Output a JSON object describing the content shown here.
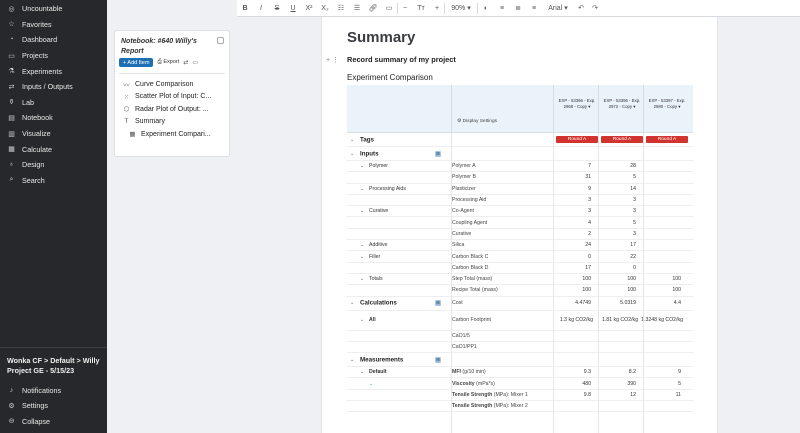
{
  "sidebar": {
    "items": [
      {
        "label": "Uncountable",
        "icon": "brand-icon"
      },
      {
        "label": "Favorites",
        "icon": "star-icon"
      },
      {
        "label": "Dashboard",
        "icon": "dashboard-icon"
      },
      {
        "label": "Projects",
        "icon": "folder-icon"
      },
      {
        "label": "Experiments",
        "icon": "experiments-icon"
      },
      {
        "label": "Inputs / Outputs",
        "icon": "inputs-outputs-icon"
      },
      {
        "label": "Lab",
        "icon": "flask-icon"
      },
      {
        "label": "Notebook",
        "icon": "notebook-icon"
      },
      {
        "label": "Visualize",
        "icon": "chart-icon"
      },
      {
        "label": "Calculate",
        "icon": "calculator-icon"
      },
      {
        "label": "Design",
        "icon": "bulb-icon"
      },
      {
        "label": "Search",
        "icon": "search-icon"
      }
    ],
    "breadcrumb": "Wonka CF > Default > Willy Project GE - 5/15/23",
    "footer": [
      {
        "label": "Notifications",
        "icon": "bell-icon"
      },
      {
        "label": "Settings",
        "icon": "gear-icon"
      },
      {
        "label": "Collapse",
        "icon": "collapse-icon"
      }
    ]
  },
  "notebook": {
    "title": "Notebook: #640 Willy's Report",
    "add_label": "+ Add Item",
    "export_label": "Export",
    "items": [
      {
        "label": "Curve Comparison",
        "icon": "curve-icon"
      },
      {
        "label": "Scatter Plot of Input: C...",
        "icon": "scatter-icon"
      },
      {
        "label": "Radar Plot of Output: ...",
        "icon": "radar-icon"
      },
      {
        "label": "Summary",
        "icon": "text-icon"
      },
      {
        "label": "Experiment Compari...",
        "icon": "table-icon"
      }
    ]
  },
  "toolbar": {
    "bold": "B",
    "italic": "I",
    "strike": "S",
    "underline": "U",
    "superscript": "X²",
    "subscript": "X₂",
    "font_size_label": "Tт",
    "zoom": "90%",
    "font": "Arial"
  },
  "doc": {
    "heading": "Summary",
    "record_summary": "Record summary of my project",
    "table_title": "Experiment Comparison",
    "display_settings": "Display Settings",
    "columns": [
      {
        "line1": "EXP - 53396 - Exp.",
        "line2": "2968 - Copy"
      },
      {
        "line1": "EXP - 53396 - Exp.",
        "line2": "2972 - Copy"
      },
      {
        "line1": "EXP - 53397 - Exp.",
        "line2": "2980 - Copy"
      }
    ],
    "tags_label": "Tags",
    "tag_value": "Round A",
    "rows": [
      {
        "kind": "sec",
        "label": "Inputs",
        "add": true
      },
      {
        "kind": "grp",
        "label": "Polymer",
        "sub": "Polymer A",
        "vals": [
          "7",
          "28",
          ""
        ]
      },
      {
        "kind": "sub",
        "sub": "Polymer B",
        "vals": [
          "31",
          "5",
          ""
        ]
      },
      {
        "kind": "grp",
        "label": "Processing Aids",
        "sub": "Plasticizer",
        "vals": [
          "9",
          "14",
          ""
        ]
      },
      {
        "kind": "sub",
        "sub": "Processing Aid",
        "vals": [
          "3",
          "3",
          ""
        ]
      },
      {
        "kind": "grp",
        "label": "Curative",
        "sub": "Co-Agent",
        "vals": [
          "3",
          "3",
          ""
        ]
      },
      {
        "kind": "sub",
        "sub": "Coupling Agent",
        "vals": [
          "4",
          "5",
          ""
        ]
      },
      {
        "kind": "sub",
        "sub": "Curative",
        "vals": [
          "2",
          "3",
          ""
        ]
      },
      {
        "kind": "grp",
        "label": "Additive",
        "sub": "Silica",
        "vals": [
          "24",
          "17",
          ""
        ]
      },
      {
        "kind": "grp",
        "label": "Filler",
        "sub": "Carbon Black C",
        "vals": [
          "0",
          "22",
          ""
        ]
      },
      {
        "kind": "sub",
        "sub": "Carbon Black D",
        "vals": [
          "17",
          "0",
          ""
        ]
      },
      {
        "kind": "grp",
        "label": "Totals",
        "sub": "Step Total (mass)",
        "vals": [
          "100",
          "100",
          "100"
        ]
      },
      {
        "kind": "sub",
        "sub": "Recipe Total (mass)",
        "vals": [
          "100",
          "100",
          "100"
        ]
      },
      {
        "kind": "sec",
        "label": "Calculations",
        "add": true,
        "sub": "Cost",
        "vals": [
          "4.4749",
          "5.0319",
          "4.4"
        ]
      },
      {
        "kind": "grp2",
        "label": "All",
        "sub": "Carbon Footprint",
        "vals": [
          "1.3 kg CO2/kg",
          "1.81 kg CO2/kg",
          "1.3248 kg CO2/kg"
        ]
      },
      {
        "kind": "sub",
        "sub": "CaO1/5",
        "vals": [
          "",
          "",
          ""
        ]
      },
      {
        "kind": "sub",
        "sub": "CaO1/PP1",
        "vals": [
          "",
          "",
          ""
        ]
      },
      {
        "kind": "sec",
        "label": "Measurements",
        "add": true
      },
      {
        "kind": "grp",
        "label": "Default",
        "sub": "MFI",
        "subunit": "(g/10 min)",
        "bold": true,
        "vals": [
          "9.3",
          "8.2",
          "9"
        ]
      },
      {
        "kind": "sub",
        "sub": "Viscosity",
        "subunit": "(mPa*s)",
        "bold": true,
        "vals": [
          "480",
          "390",
          "5"
        ],
        "chev": true
      },
      {
        "kind": "sub",
        "sub": "Tensile Strength",
        "subunit": "(MPa): Mixer 1",
        "bold": true,
        "vals": [
          "9.8",
          "12",
          "11"
        ]
      },
      {
        "kind": "sub",
        "sub": "Tensile Strength",
        "subunit": "(MPa): Mixer 2",
        "bold": true,
        "vals": [
          "",
          "",
          ""
        ]
      }
    ]
  }
}
